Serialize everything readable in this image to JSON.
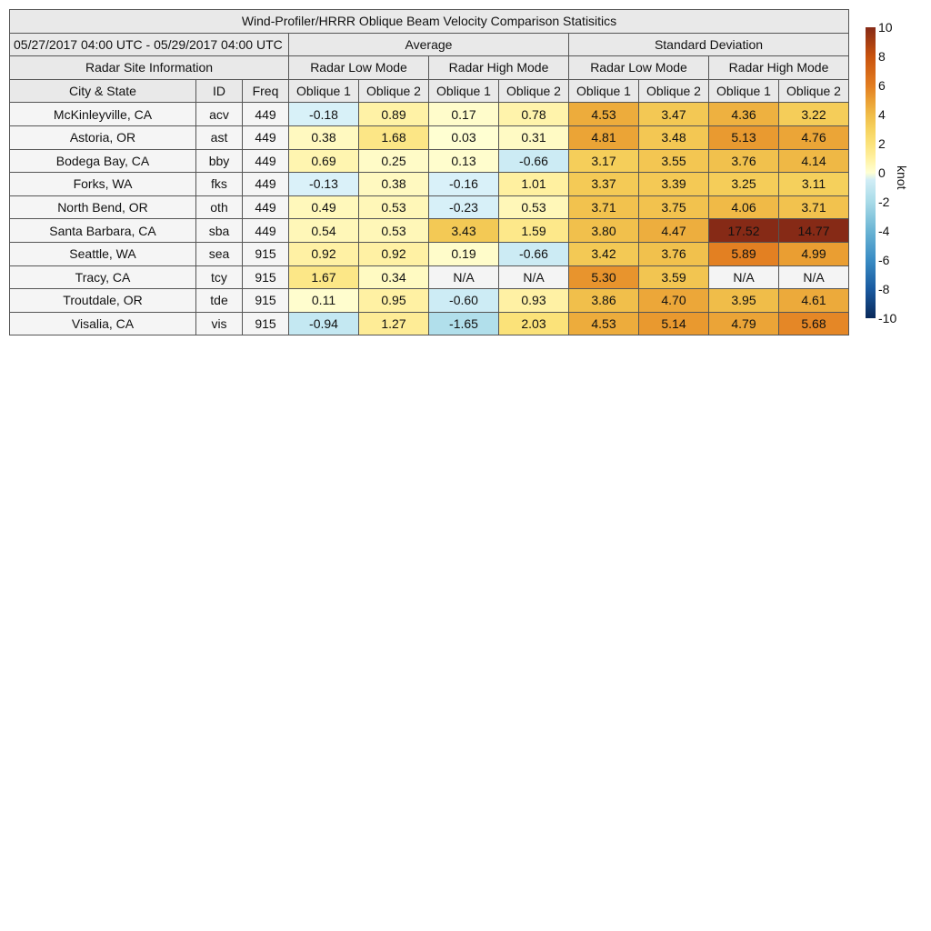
{
  "chart_data": {
    "type": "table",
    "title": "Wind-Profiler/HRRR Oblique Beam Velocity Comparison Statisitics",
    "date_range": "05/27/2017 04:00 UTC - 05/29/2017 04:00 UTC",
    "group_headers": {
      "site_info": "Radar Site Information",
      "average": "Average",
      "std": "Standard Deviation",
      "low": "Radar Low Mode",
      "high": "Radar High Mode"
    },
    "columns": [
      "City & State",
      "ID",
      "Freq",
      "Oblique 1",
      "Oblique 2",
      "Oblique 1",
      "Oblique 2",
      "Oblique 1",
      "Oblique 2",
      "Oblique 1",
      "Oblique 2"
    ],
    "rows": [
      [
        "McKinleyville, CA",
        "acv",
        "449",
        "-0.18",
        "0.89",
        "0.17",
        "0.78",
        "4.53",
        "3.47",
        "4.36",
        "3.22"
      ],
      [
        "Astoria, OR",
        "ast",
        "449",
        "0.38",
        "1.68",
        "0.03",
        "0.31",
        "4.81",
        "3.48",
        "5.13",
        "4.76"
      ],
      [
        "Bodega Bay, CA",
        "bby",
        "449",
        "0.69",
        "0.25",
        "0.13",
        "-0.66",
        "3.17",
        "3.55",
        "3.76",
        "4.14"
      ],
      [
        "Forks, WA",
        "fks",
        "449",
        "-0.13",
        "0.38",
        "-0.16",
        "1.01",
        "3.37",
        "3.39",
        "3.25",
        "3.11"
      ],
      [
        "North Bend, OR",
        "oth",
        "449",
        "0.49",
        "0.53",
        "-0.23",
        "0.53",
        "3.71",
        "3.75",
        "4.06",
        "3.71"
      ],
      [
        "Santa Barbara, CA",
        "sba",
        "449",
        "0.54",
        "0.53",
        "3.43",
        "1.59",
        "3.80",
        "4.47",
        "17.52",
        "14.77"
      ],
      [
        "Seattle, WA",
        "sea",
        "915",
        "0.92",
        "0.92",
        "0.19",
        "-0.66",
        "3.42",
        "3.76",
        "5.89",
        "4.99"
      ],
      [
        "Tracy, CA",
        "tcy",
        "915",
        "1.67",
        "0.34",
        "N/A",
        "N/A",
        "5.30",
        "3.59",
        "N/A",
        "N/A"
      ],
      [
        "Troutdale, OR",
        "tde",
        "915",
        "0.11",
        "0.95",
        "-0.60",
        "0.93",
        "3.86",
        "4.70",
        "3.95",
        "4.61"
      ],
      [
        "Visalia, CA",
        "vis",
        "915",
        "-0.94",
        "1.27",
        "-1.65",
        "2.03",
        "4.53",
        "5.14",
        "4.79",
        "5.68"
      ]
    ],
    "colorbar": {
      "label": "knot",
      "range": [
        -10,
        10
      ],
      "ticks": [
        "10",
        "8",
        "6",
        "4",
        "2",
        "0",
        "-2",
        "-4",
        "-6",
        "-8",
        "-10"
      ]
    },
    "na_color": "#f4f4f4"
  }
}
